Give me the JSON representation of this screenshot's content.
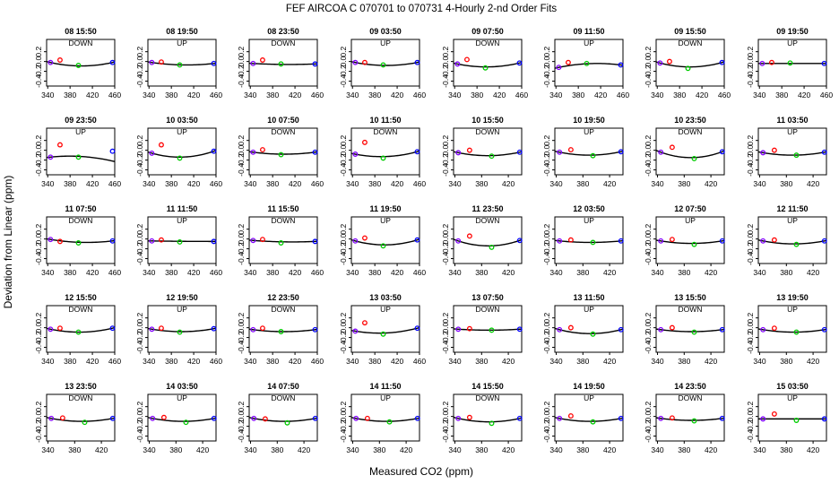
{
  "chart_data": {
    "type": "scatter",
    "title": "FEF   AIRCOA C   070701 to 070731   4-Hourly 2-nd Order Fits",
    "xlabel": "Measured CO2 (ppm)",
    "ylabel": "Deviation from Linear (ppm)",
    "ylim": [
      -0.5,
      0.45
    ],
    "yticks": [
      0.2,
      0.0,
      -0.2,
      -0.4
    ],
    "ytick_labels": [
      "0.2",
      "0.0",
      "-0.2",
      "-0.4"
    ],
    "xticks_wide": [
      340,
      380,
      420,
      460
    ],
    "xticks_narrow": [
      340,
      380,
      420
    ],
    "point_colors": [
      "#8000ff",
      "#ff0000",
      "#00cc00",
      "#0000ff"
    ],
    "panels": [
      {
        "label": "08 15:50",
        "dir": "DOWN",
        "xlim": [
          338,
          460
        ],
        "x": [
          345,
          362,
          395,
          456
        ],
        "y": [
          -0.02,
          0.03,
          -0.08,
          -0.02
        ],
        "c": -0.09
      },
      {
        "label": "08 19:50",
        "dir": "UP",
        "xlim": [
          338,
          460
        ],
        "x": [
          345,
          362,
          395,
          456
        ],
        "y": [
          -0.02,
          -0.01,
          -0.07,
          -0.04
        ],
        "c": -0.07
      },
      {
        "label": "08 23:50",
        "dir": "DOWN",
        "xlim": [
          338,
          460
        ],
        "x": [
          345,
          362,
          395,
          456
        ],
        "y": [
          -0.04,
          0.03,
          -0.05,
          -0.05
        ],
        "c": -0.06
      },
      {
        "label": "09 03:50",
        "dir": "UP",
        "xlim": [
          338,
          460
        ],
        "x": [
          345,
          362,
          395,
          456
        ],
        "y": [
          -0.02,
          -0.02,
          -0.07,
          -0.02
        ],
        "c": -0.08
      },
      {
        "label": "09 07:50",
        "dir": "DOWN",
        "xlim": [
          338,
          460
        ],
        "x": [
          345,
          362,
          395,
          456
        ],
        "y": [
          -0.05,
          0.04,
          -0.13,
          -0.03
        ],
        "c": -0.11
      },
      {
        "label": "09 11:50",
        "dir": "UP",
        "xlim": [
          338,
          460
        ],
        "x": [
          345,
          362,
          395,
          456
        ],
        "y": [
          -0.12,
          -0.02,
          -0.04,
          -0.07
        ],
        "c": -0.04
      },
      {
        "label": "09 15:50",
        "dir": "DOWN",
        "xlim": [
          338,
          460
        ],
        "x": [
          345,
          362,
          395,
          456
        ],
        "y": [
          -0.03,
          0.0,
          -0.14,
          -0.02
        ],
        "c": -0.11
      },
      {
        "label": "09 19:50",
        "dir": "UP",
        "xlim": [
          338,
          460
        ],
        "x": [
          345,
          362,
          395,
          456
        ],
        "y": [
          -0.04,
          -0.02,
          -0.03,
          -0.04
        ],
        "c": -0.04
      },
      {
        "label": "09 23:50",
        "dir": "UP",
        "xlim": [
          338,
          460
        ],
        "x": [
          345,
          362,
          395,
          456
        ],
        "y": [
          -0.14,
          0.11,
          -0.14,
          -0.02
        ],
        "c": -0.12
      },
      {
        "label": "10 03:50",
        "dir": "UP",
        "xlim": [
          338,
          460
        ],
        "x": [
          345,
          362,
          395,
          456
        ],
        "y": [
          -0.06,
          0.11,
          -0.16,
          -0.02
        ],
        "c": -0.14
      },
      {
        "label": "10 07:50",
        "dir": "DOWN",
        "xlim": [
          338,
          460
        ],
        "x": [
          345,
          362,
          395,
          456
        ],
        "y": [
          -0.04,
          0.01,
          -0.09,
          -0.04
        ],
        "c": -0.08
      },
      {
        "label": "10 11:50",
        "dir": "DOWN",
        "xlim": [
          338,
          460
        ],
        "x": [
          345,
          362,
          395,
          456
        ],
        "y": [
          -0.08,
          0.16,
          -0.16,
          -0.03
        ],
        "c": -0.13
      },
      {
        "label": "10 15:50",
        "dir": "DOWN",
        "xlim": [
          338,
          440
        ],
        "x": [
          345,
          362,
          395,
          437
        ],
        "y": [
          -0.05,
          0.0,
          -0.12,
          -0.04
        ],
        "c": -0.11
      },
      {
        "label": "10 19:50",
        "dir": "UP",
        "xlim": [
          338,
          440
        ],
        "x": [
          345,
          362,
          395,
          437
        ],
        "y": [
          -0.04,
          0.01,
          -0.11,
          -0.03
        ],
        "c": -0.1
      },
      {
        "label": "10 23:50",
        "dir": "DOWN",
        "xlim": [
          338,
          440
        ],
        "x": [
          345,
          362,
          395,
          437
        ],
        "y": [
          -0.04,
          0.06,
          -0.17,
          -0.03
        ],
        "c": -0.15
      },
      {
        "label": "11 03:50",
        "dir": "UP",
        "xlim": [
          338,
          440
        ],
        "x": [
          345,
          362,
          395,
          437
        ],
        "y": [
          -0.05,
          0.0,
          -0.1,
          -0.04
        ],
        "c": -0.1
      },
      {
        "label": "11 07:50",
        "dir": "DOWN",
        "xlim": [
          338,
          460
        ],
        "x": [
          345,
          362,
          395,
          456
        ],
        "y": [
          -0.01,
          -0.05,
          -0.08,
          -0.04
        ],
        "c": -0.07
      },
      {
        "label": "11 11:50",
        "dir": "UP",
        "xlim": [
          338,
          460
        ],
        "x": [
          345,
          362,
          395,
          456
        ],
        "y": [
          -0.04,
          -0.02,
          -0.06,
          -0.05
        ],
        "c": -0.05
      },
      {
        "label": "11 15:50",
        "dir": "DOWN",
        "xlim": [
          338,
          460
        ],
        "x": [
          345,
          362,
          395,
          456
        ],
        "y": [
          -0.03,
          -0.01,
          -0.08,
          -0.05
        ],
        "c": -0.06
      },
      {
        "label": "11 19:50",
        "dir": "UP",
        "xlim": [
          338,
          460
        ],
        "x": [
          345,
          362,
          395,
          456
        ],
        "y": [
          -0.04,
          0.02,
          -0.14,
          -0.02
        ],
        "c": -0.12
      },
      {
        "label": "11 23:50",
        "dir": "DOWN",
        "xlim": [
          338,
          440
        ],
        "x": [
          345,
          362,
          395,
          437
        ],
        "y": [
          -0.04,
          0.06,
          -0.17,
          -0.03
        ],
        "c": -0.14
      },
      {
        "label": "12 03:50",
        "dir": "UP",
        "xlim": [
          338,
          440
        ],
        "x": [
          345,
          362,
          395,
          437
        ],
        "y": [
          -0.04,
          -0.02,
          -0.07,
          -0.04
        ],
        "c": -0.07
      },
      {
        "label": "12 07:50",
        "dir": "UP",
        "xlim": [
          338,
          440
        ],
        "x": [
          345,
          362,
          395,
          437
        ],
        "y": [
          -0.04,
          -0.01,
          -0.11,
          -0.04
        ],
        "c": -0.09
      },
      {
        "label": "12 11:50",
        "dir": "UP",
        "xlim": [
          338,
          440
        ],
        "x": [
          345,
          362,
          395,
          437
        ],
        "y": [
          -0.04,
          -0.02,
          -0.11,
          -0.04
        ],
        "c": -0.1
      },
      {
        "label": "12 15:50",
        "dir": "DOWN",
        "xlim": [
          338,
          460
        ],
        "x": [
          345,
          362,
          395,
          456
        ],
        "y": [
          -0.03,
          -0.01,
          -0.09,
          -0.01
        ],
        "c": -0.09
      },
      {
        "label": "12 19:50",
        "dir": "UP",
        "xlim": [
          338,
          460
        ],
        "x": [
          345,
          362,
          395,
          456
        ],
        "y": [
          -0.03,
          -0.01,
          -0.09,
          -0.02
        ],
        "c": -0.08
      },
      {
        "label": "12 23:50",
        "dir": "DOWN",
        "xlim": [
          338,
          460
        ],
        "x": [
          345,
          362,
          395,
          456
        ],
        "y": [
          -0.04,
          -0.01,
          -0.08,
          -0.04
        ],
        "c": -0.08
      },
      {
        "label": "13 03:50",
        "dir": "UP",
        "xlim": [
          338,
          460
        ],
        "x": [
          345,
          362,
          395,
          456
        ],
        "y": [
          -0.07,
          0.1,
          -0.13,
          -0.01
        ],
        "c": -0.11
      },
      {
        "label": "13 07:50",
        "dir": "DOWN",
        "xlim": [
          338,
          440
        ],
        "x": [
          345,
          362,
          395,
          437
        ],
        "y": [
          -0.03,
          -0.02,
          -0.05,
          -0.03
        ],
        "c": -0.05
      },
      {
        "label": "13 11:50",
        "dir": "UP",
        "xlim": [
          338,
          440
        ],
        "x": [
          345,
          362,
          395,
          437
        ],
        "y": [
          -0.04,
          0.0,
          -0.13,
          -0.04
        ],
        "c": -0.12
      },
      {
        "label": "13 15:50",
        "dir": "DOWN",
        "xlim": [
          338,
          440
        ],
        "x": [
          345,
          362,
          395,
          437
        ],
        "y": [
          -0.04,
          0.0,
          -0.09,
          -0.04
        ],
        "c": -0.08
      },
      {
        "label": "13 19:50",
        "dir": "UP",
        "xlim": [
          338,
          440
        ],
        "x": [
          345,
          362,
          395,
          437
        ],
        "y": [
          -0.04,
          -0.01,
          -0.09,
          -0.04
        ],
        "c": -0.09
      },
      {
        "label": "13 23:50",
        "dir": "DOWN",
        "xlim": [
          338,
          440
        ],
        "x": [
          345,
          362,
          395,
          437
        ],
        "y": [
          -0.04,
          -0.03,
          -0.12,
          -0.04
        ],
        "c": -0.1
      },
      {
        "label": "14 03:50",
        "dir": "UP",
        "xlim": [
          338,
          440
        ],
        "x": [
          345,
          362,
          395,
          437
        ],
        "y": [
          -0.04,
          -0.02,
          -0.12,
          -0.04
        ],
        "c": -0.1
      },
      {
        "label": "14 07:50",
        "dir": "DOWN",
        "xlim": [
          338,
          440
        ],
        "x": [
          345,
          362,
          395,
          437
        ],
        "y": [
          -0.04,
          -0.05,
          -0.13,
          -0.04
        ],
        "c": -0.1
      },
      {
        "label": "14 11:50",
        "dir": "UP",
        "xlim": [
          338,
          440
        ],
        "x": [
          345,
          362,
          395,
          437
        ],
        "y": [
          -0.04,
          -0.04,
          -0.11,
          -0.04
        ],
        "c": -0.1
      },
      {
        "label": "14 15:50",
        "dir": "DOWN",
        "xlim": [
          338,
          440
        ],
        "x": [
          345,
          362,
          395,
          437
        ],
        "y": [
          -0.04,
          -0.02,
          -0.14,
          -0.04
        ],
        "c": -0.11
      },
      {
        "label": "14 19:50",
        "dir": "UP",
        "xlim": [
          338,
          440
        ],
        "x": [
          345,
          362,
          395,
          437
        ],
        "y": [
          -0.04,
          0.01,
          -0.11,
          -0.04
        ],
        "c": -0.1
      },
      {
        "label": "14 23:50",
        "dir": "DOWN",
        "xlim": [
          338,
          440
        ],
        "x": [
          345,
          362,
          395,
          437
        ],
        "y": [
          -0.04,
          -0.03,
          -0.09,
          -0.04
        ],
        "c": -0.08
      },
      {
        "label": "15 03:50",
        "dir": "UP",
        "xlim": [
          338,
          440
        ],
        "x": [
          345,
          362,
          395,
          437
        ],
        "y": [
          -0.05,
          0.05,
          -0.08,
          -0.05
        ],
        "c": -0.05
      }
    ]
  }
}
